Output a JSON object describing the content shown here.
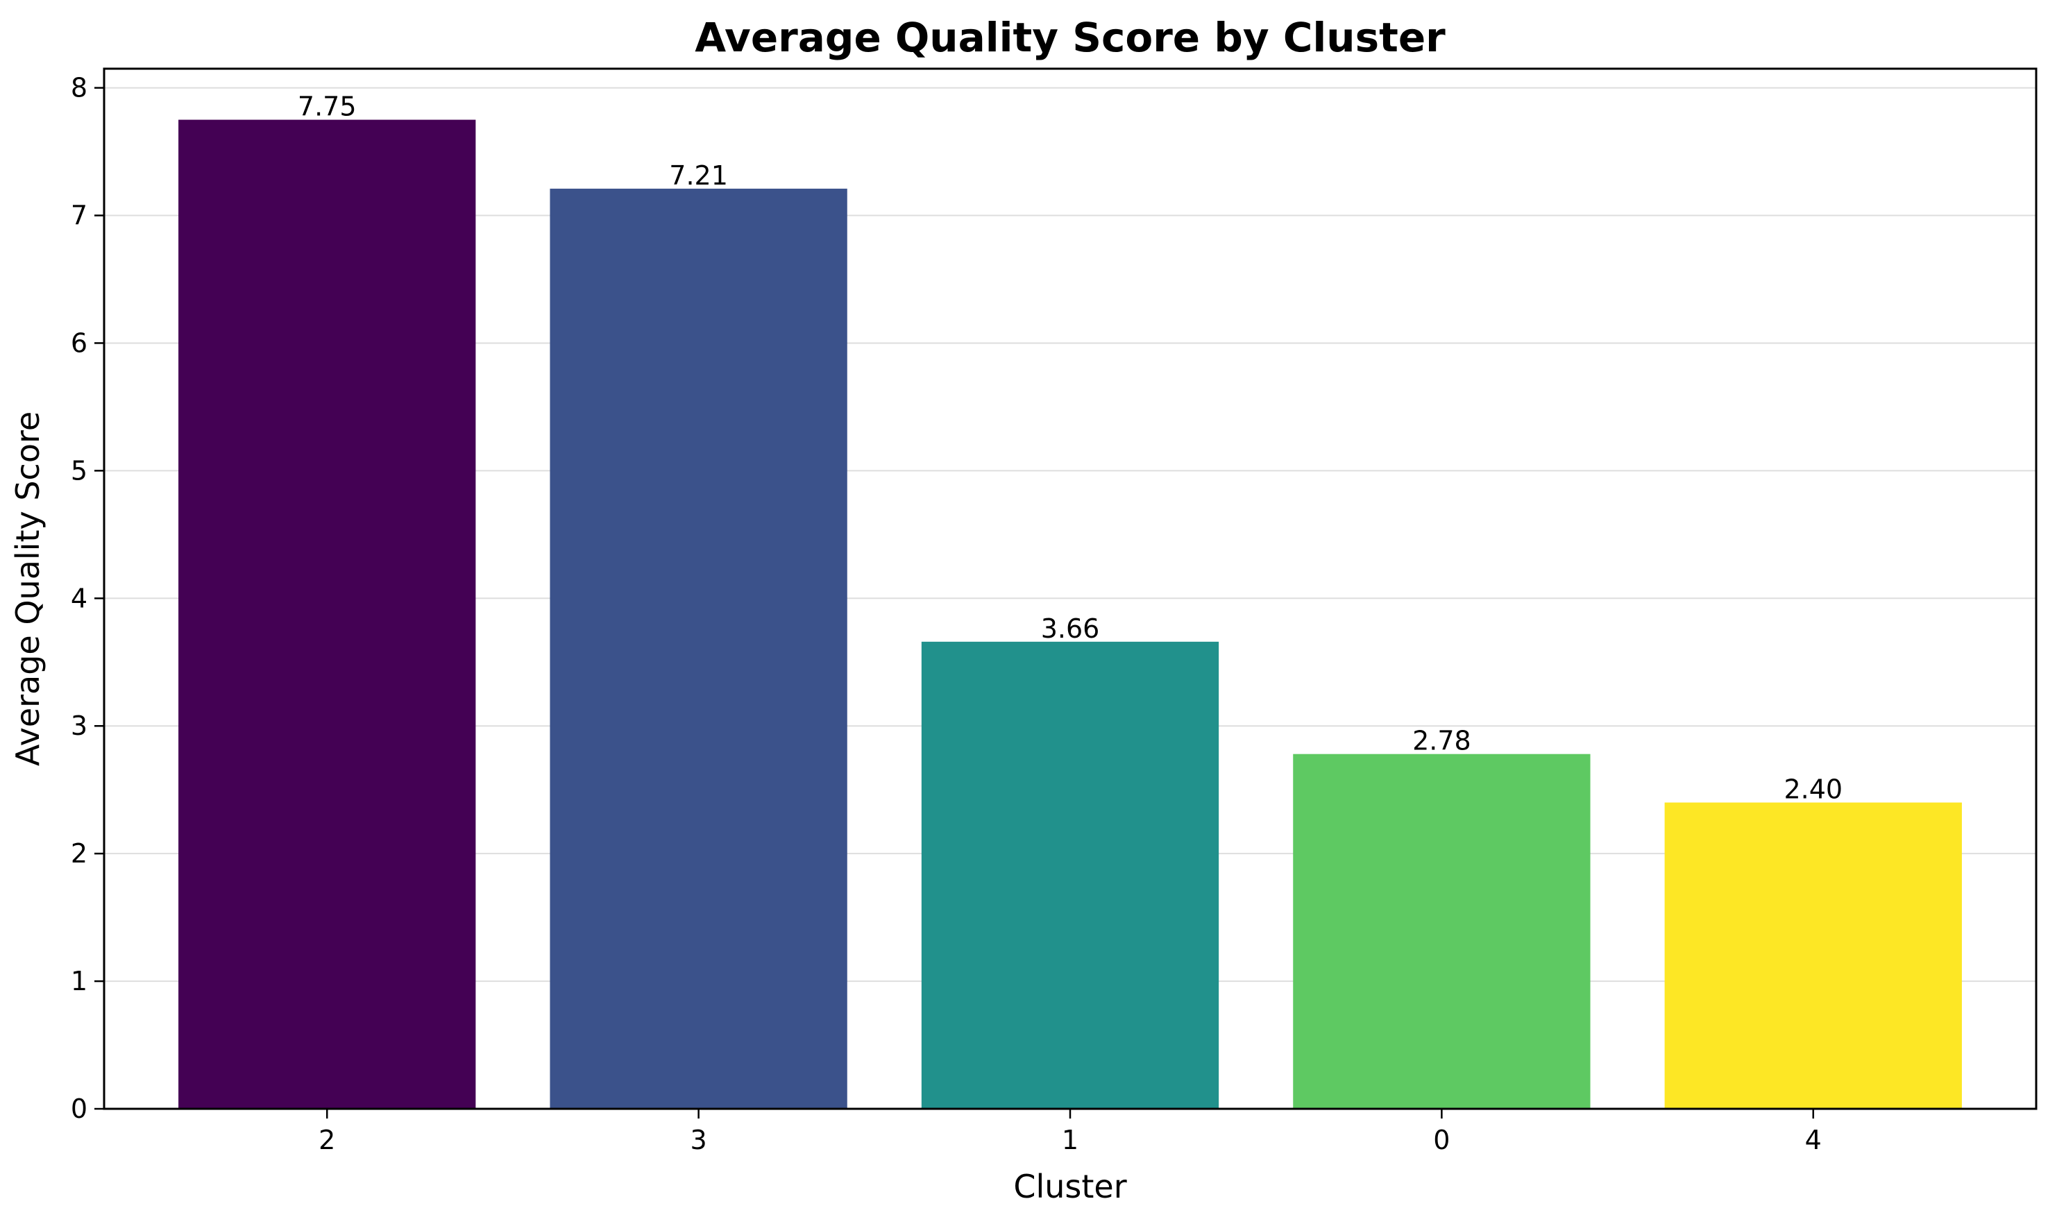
{
  "chart_data": {
    "type": "bar",
    "title": "Average Quality Score by Cluster",
    "xlabel": "Cluster",
    "ylabel": "Average Quality Score",
    "categories": [
      "2",
      "3",
      "1",
      "0",
      "4"
    ],
    "values": [
      7.75,
      7.21,
      3.66,
      2.78,
      2.4
    ],
    "value_labels": [
      "7.75",
      "7.21",
      "3.66",
      "2.78",
      "2.40"
    ],
    "colors": [
      "#440154",
      "#3b528b",
      "#21918c",
      "#5ec962",
      "#fde725"
    ],
    "ylim": [
      0,
      8.15
    ],
    "yticks": [
      0,
      1,
      2,
      3,
      4,
      5,
      6,
      7,
      8
    ],
    "ytick_labels": [
      "0",
      "1",
      "2",
      "3",
      "4",
      "5",
      "6",
      "7",
      "8"
    ],
    "grid": "horizontal",
    "legend": "none"
  }
}
